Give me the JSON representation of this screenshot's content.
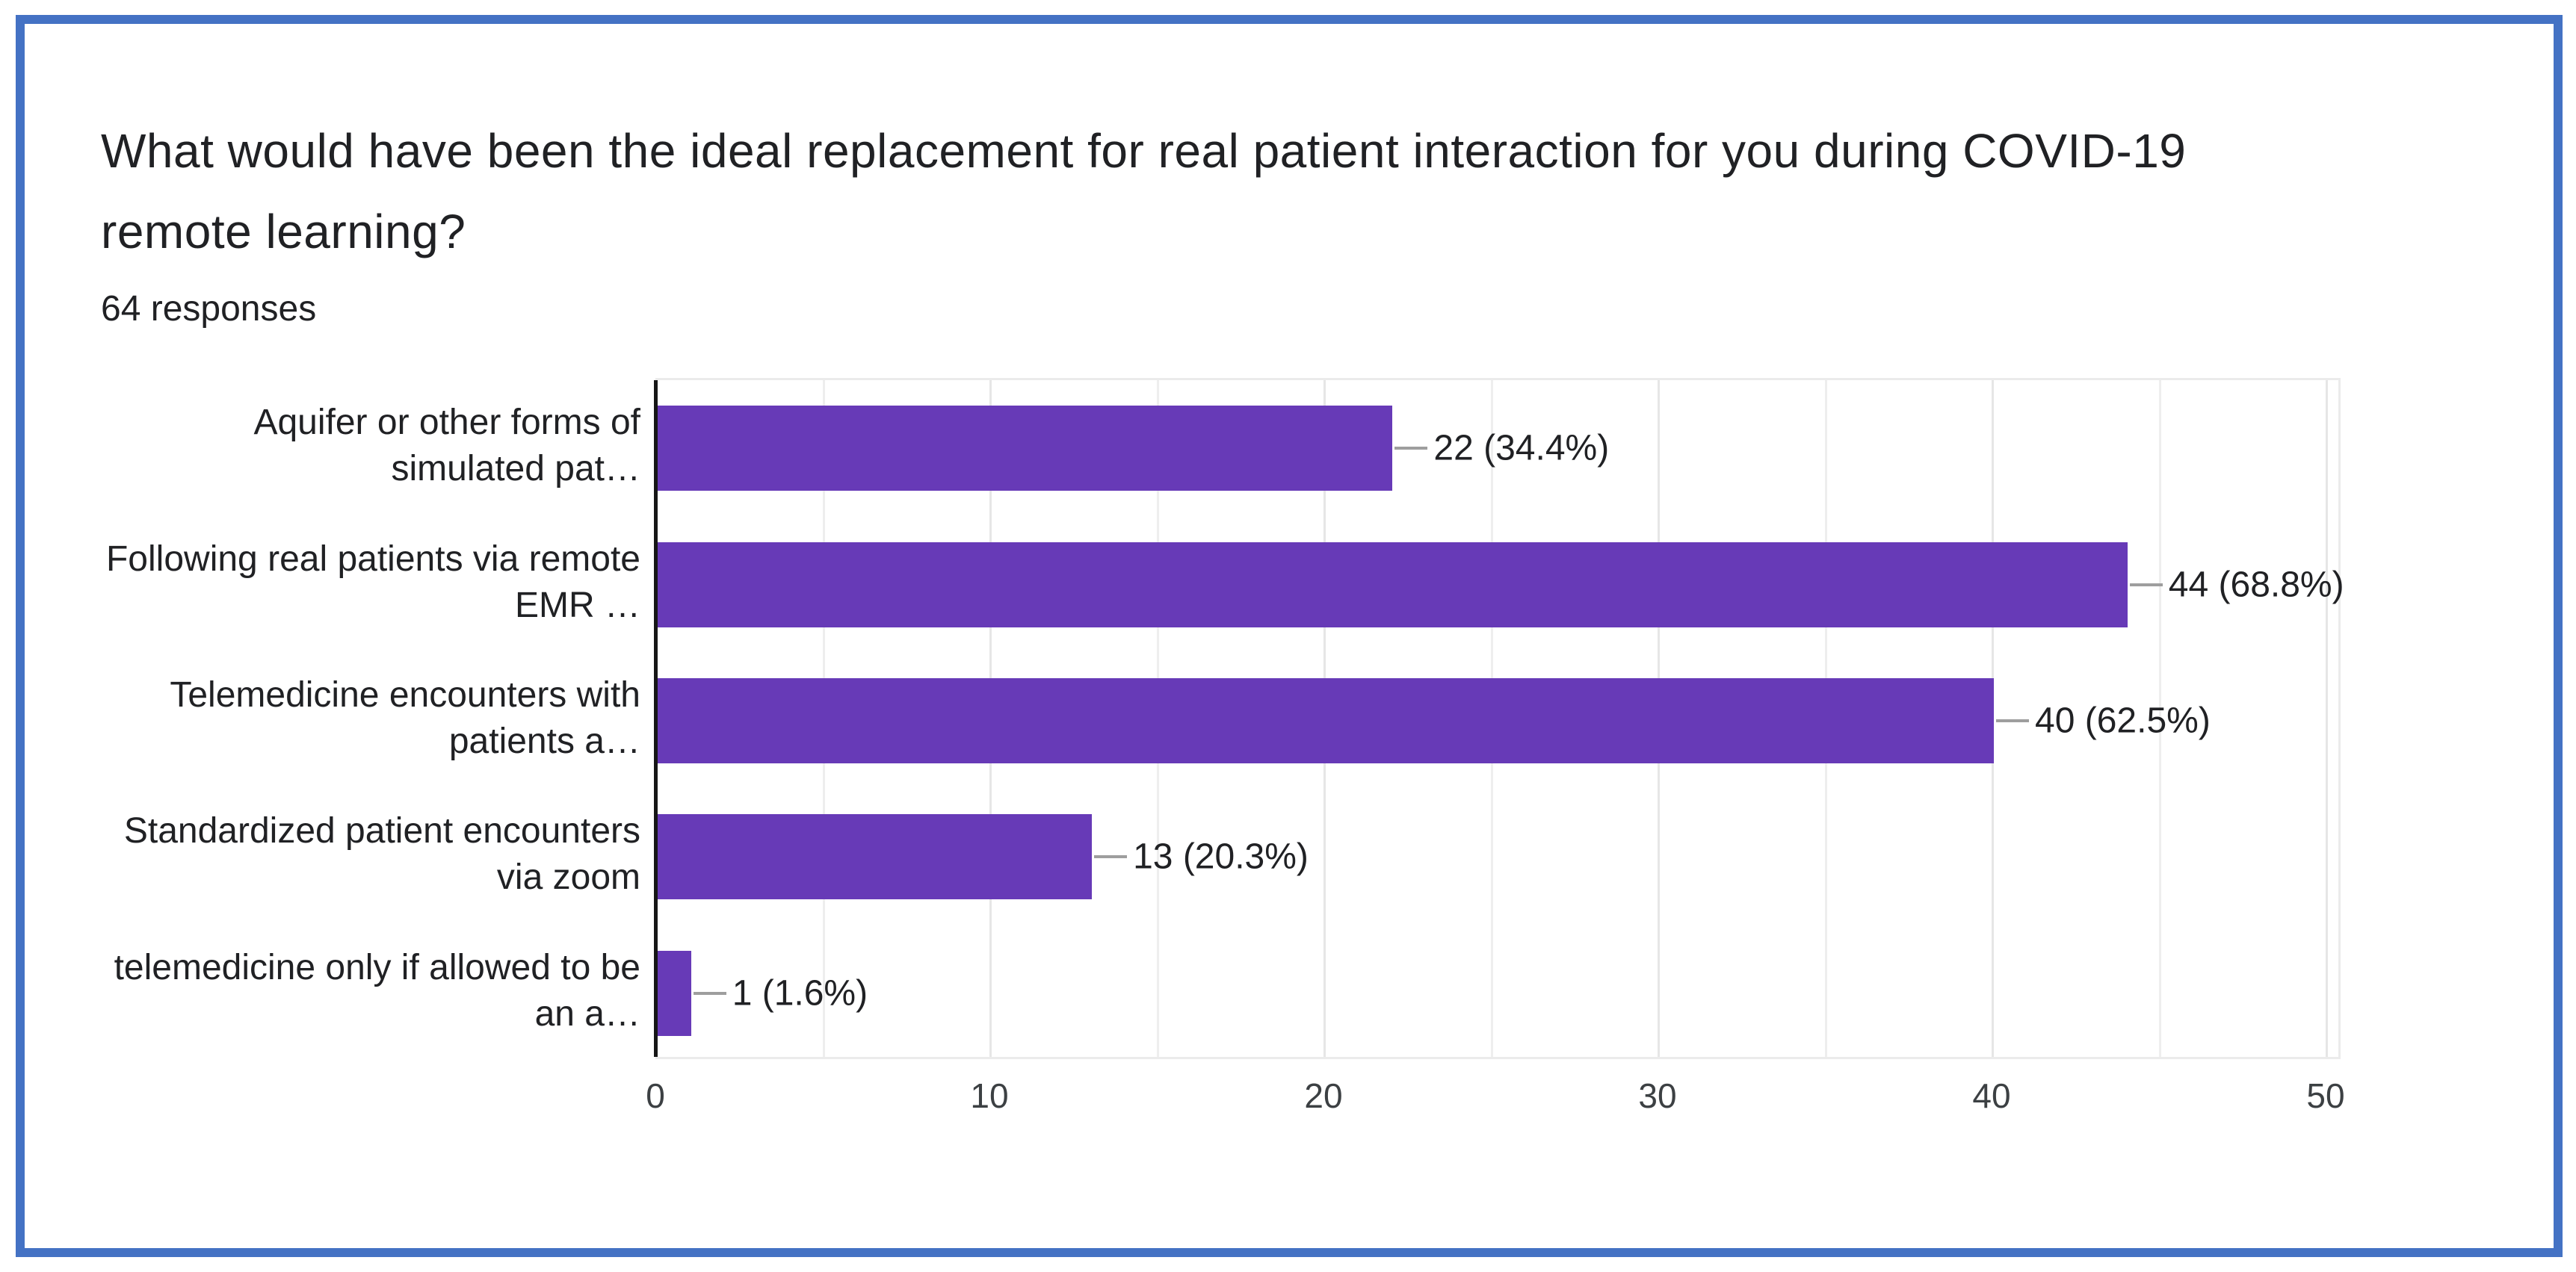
{
  "title": {
    "line1": "What would have been the ideal replacement for real patient interaction for you during COVID-19",
    "line2": "remote learning?"
  },
  "subtitle": "64 responses",
  "colors": {
    "bar": "#673ab7",
    "card_border": "#4472c4",
    "connector": "#9e9e9e",
    "axis": "#161616",
    "gridline": "#e6e6e6",
    "text": "#202124"
  },
  "chart_data": {
    "type": "bar",
    "orientation": "horizontal",
    "title": "What would have been the ideal replacement for real patient interaction for you during COVID-19 remote learning?",
    "subtitle": "64 responses",
    "total_responses": 64,
    "categories": [
      "Aquifer or other forms of simulated pat…",
      "Following real patients via remote EMR …",
      "Telemedicine encounters with patients a…",
      "Standardized patient encounters via zoom",
      "telemedicine only if allowed to be an a…"
    ],
    "category_lines": [
      [
        "Aquifer or other forms of",
        "simulated pat…"
      ],
      [
        "Following real patients via remote",
        "EMR …"
      ],
      [
        "Telemedicine encounters with",
        "patients a…"
      ],
      [
        "Standardized patient encounters",
        "via zoom"
      ],
      [
        "telemedicine only if allowed to be",
        "an a…"
      ]
    ],
    "values": [
      22,
      44,
      40,
      13,
      1
    ],
    "percentages": [
      34.4,
      68.8,
      62.5,
      20.3,
      1.6
    ],
    "value_labels": [
      "22 (34.4%)",
      "44 (68.8%)",
      "40 (62.5%)",
      "13 (20.3%)",
      "1 (1.6%)"
    ],
    "xlim": [
      0,
      50
    ],
    "x_ticks": [
      0,
      10,
      20,
      30,
      40,
      50
    ],
    "gridline_step": 5,
    "grid": true,
    "legend": "none",
    "bar_color": "#673ab7"
  }
}
